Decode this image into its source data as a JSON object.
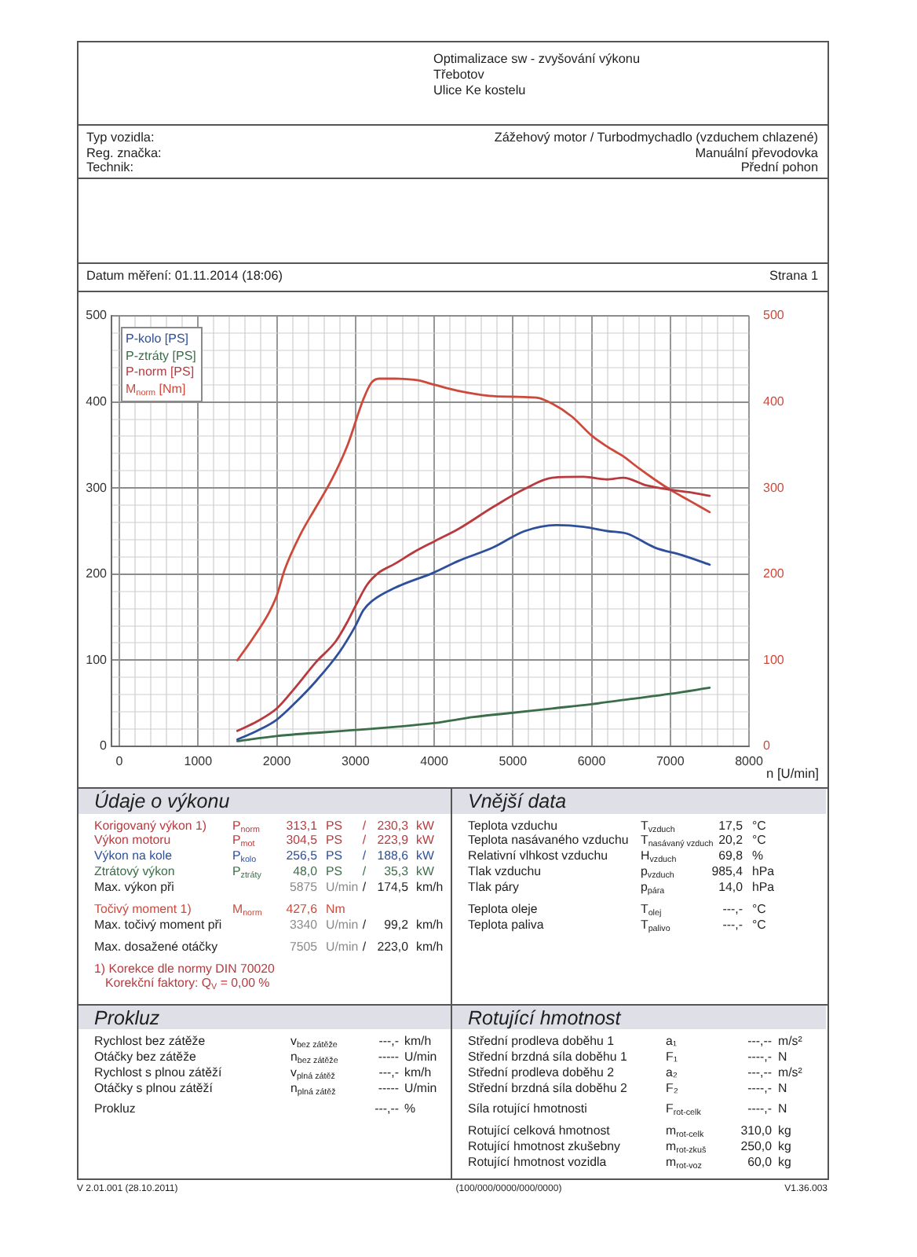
{
  "chart_data": {
    "type": "line",
    "xlabel": "n [U/min]",
    "xlim": [
      -100,
      8000
    ],
    "xticks": [
      0,
      {
        "value": 200,
        "label": null
      },
      {
        "value": 400,
        "label": null
      },
      {
        "value": 600,
        "label": null
      },
      {
        "value": 800,
        "label": null
      },
      1000,
      {
        "value": 1200,
        "label": null
      },
      {
        "value": 1400,
        "label": null
      },
      {
        "value": 1600,
        "label": null
      },
      {
        "value": 1800,
        "label": null
      },
      2000,
      {
        "value": 2200,
        "label": null
      },
      {
        "value": 2400,
        "label": null
      },
      {
        "value": 2600,
        "label": null
      },
      {
        "value": 2800,
        "label": null
      },
      3000,
      {
        "value": 3200,
        "label": null
      },
      {
        "value": 3400,
        "label": null
      },
      {
        "value": 3600,
        "label": null
      },
      {
        "value": 3800,
        "label": null
      },
      4000,
      {
        "value": 4200,
        "label": null
      },
      {
        "value": 4400,
        "label": null
      },
      {
        "value": 4600,
        "label": null
      },
      {
        "value": 4800,
        "label": null
      },
      5000,
      {
        "value": 5200,
        "label": null
      },
      {
        "value": 5400,
        "label": null
      },
      {
        "value": 5600,
        "label": null
      },
      {
        "value": 5800,
        "label": null
      },
      6000,
      {
        "value": 6200,
        "label": null
      },
      {
        "value": 6400,
        "label": null
      },
      {
        "value": 6600,
        "label": null
      },
      {
        "value": 6800,
        "label": null
      },
      7000,
      {
        "value": 7200,
        "label": null
      },
      {
        "value": 7400,
        "label": null
      },
      {
        "value": 7600,
        "label": null
      },
      {
        "value": 7800,
        "label": null
      },
      8000
    ],
    "ylim": [
      0,
      500
    ],
    "yticks": [
      0,
      {
        "value": 20,
        "label": null
      },
      {
        "value": 40,
        "label": null
      },
      {
        "value": 60,
        "label": null
      },
      {
        "value": 80,
        "label": null
      },
      100,
      {
        "value": 120,
        "label": null
      },
      {
        "value": 140,
        "label": null
      },
      {
        "value": 160,
        "label": null
      },
      {
        "value": 180,
        "label": null
      },
      200,
      {
        "value": 220,
        "label": null
      },
      {
        "value": 240,
        "label": null
      },
      {
        "value": 260,
        "label": null
      },
      {
        "value": 280,
        "label": null
      },
      300,
      {
        "value": 320,
        "label": null
      },
      {
        "value": 340,
        "label": null
      },
      {
        "value": 360,
        "label": null
      },
      {
        "value": 380,
        "label": null
      },
      400,
      {
        "value": 420,
        "label": null
      },
      {
        "value": 440,
        "label": null
      },
      {
        "value": 460,
        "label": null
      },
      {
        "value": 480,
        "label": null
      },
      500
    ],
    "y2lim": [
      0,
      500
    ],
    "y2ticks": [
      0,
      100,
      200,
      300,
      400,
      500
    ],
    "grid": true,
    "legend": "top left",
    "series": [
      {
        "name": "P-kolo [PS]",
        "color": "#2e4f9a",
        "x": [
          1500,
          1750,
          2000,
          2250,
          2500,
          2800,
          3000,
          3100,
          3200,
          3500,
          4000,
          4300,
          4750,
          5150,
          5550,
          5900,
          6200,
          6450,
          6800,
          7150,
          7500
        ],
        "values": [
          8,
          18,
          31,
          52,
          76,
          110,
          140,
          158,
          168,
          184,
          202,
          215,
          231,
          250,
          257,
          255,
          250,
          247,
          231,
          222,
          211
        ]
      },
      {
        "name": "P-ztráty [PS]",
        "color": "#3a6e48",
        "x": [
          1500,
          2000,
          3000,
          4000,
          4500,
          5000,
          5500,
          6000,
          6500,
          7000,
          7500
        ],
        "values": [
          6,
          12,
          19,
          27,
          34,
          39,
          44,
          49,
          55,
          61,
          68
        ]
      },
      {
        "name": "P-norm [PS]",
        "color": "#b83a3e",
        "x": [
          1500,
          1750,
          2000,
          2250,
          2500,
          2750,
          2900,
          3000,
          3150,
          3300,
          3500,
          3750,
          4000,
          4300,
          4750,
          5150,
          5500,
          5900,
          6200,
          6400,
          6700,
          7000,
          7250,
          7500
        ],
        "values": [
          18,
          29,
          44,
          70,
          98,
          122,
          145,
          163,
          188,
          202,
          212,
          226,
          238,
          252,
          278,
          299,
          312,
          313,
          310,
          312,
          303,
          298,
          295,
          291
        ]
      },
      {
        "name": "M$_{norm}$ [Nm]",
        "color": "#cc4a3c",
        "axis": "y2",
        "x": [
          1500,
          1700,
          1900,
          2000,
          2100,
          2300,
          2500,
          2700,
          2900,
          3100,
          3200,
          3300,
          3500,
          3800,
          4000,
          4300,
          4700,
          5000,
          5300,
          5500,
          5750,
          6000,
          6200,
          6400,
          6600,
          6800,
          7000,
          7250,
          7500
        ],
        "values": [
          100,
          126,
          155,
          175,
          205,
          246,
          278,
          310,
          350,
          403,
          422,
          427,
          427,
          425,
          420,
          413,
          407,
          406,
          405,
          398,
          383,
          361,
          348,
          337,
          323,
          310,
          298,
          285,
          272
        ]
      }
    ],
    "annotations": [
      "Optimalizace sw - zvyšování výkonu",
      "Třebotov",
      "Ulice Ke kostelu",
      "Typ vozidla:",
      "Reg. značka:",
      "Technik:",
      "Zážehový motor / Turbodmychadlo (vzduchem chlazené)",
      "Manuální převodovka",
      "Přední pohon",
      "Datum měření: 01.11.2014 (18:06)",
      "Strana 1",
      "Údaje o výkonu",
      "Vnější data",
      "Korigovaný výkon 1)",
      "P$_{norm}$",
      "313,1",
      "PS",
      "/",
      "230,3",
      "kW",
      "Výkon motoru",
      "P$_{mot}$",
      "304,5",
      "PS",
      "/",
      "223,9",
      "kW",
      "Výkon na kole",
      "P$_{kolo}$",
      "256,5",
      "PS",
      "/",
      "188,6",
      "kW",
      "Ztrátový výkon",
      "P$_{ztráty}$",
      "48,0",
      "PS",
      "/",
      "35,3",
      "kW",
      "Max. výkon při",
      "5875",
      "U/min",
      "/",
      "174,5",
      "km/h",
      "Točivý moment 1)",
      "M$_{norm}$",
      "427,6",
      "Nm",
      "Max. točivý moment při",
      "3340",
      "U/min",
      "/",
      "99,2",
      "km/h",
      "Max. dosažené otáčky",
      "7505",
      "U/min",
      "/",
      "223,0",
      "km/h",
      "1) Korekce dle normy DIN 70020",
      "Korekční faktory: Q$_{V}$ = 0,00 %",
      "Teplota vzduchu",
      "T$_{vzduch}$",
      "17,5",
      "°C",
      "Teplota nasávaného vzduchu",
      "T$_{nasávaný vzduch}$",
      "20,2",
      "°C",
      "Relativní vlhkost vzduchu",
      "H$_{vzduch}$",
      "69,8",
      "%",
      "Tlak vzduchu",
      "p$_{vzduch}$",
      "985,4",
      "hPa",
      "Tlak páry",
      "p$_{pára}$",
      "14,0",
      "hPa",
      "Teplota oleje",
      "T$_{olej}$",
      "---,-",
      "°C",
      "Teplota paliva",
      "T$_{palivo}$",
      "---,-",
      "°C",
      "Prokluz",
      "Rotující hmotnost",
      "Rychlost bez zátěže",
      "v$_{bez zátěže}$",
      "---,-",
      "km/h",
      "Otáčky bez zátěže",
      "n$_{bez zátěže}$",
      "-----",
      "U/min",
      "Rychlost s plnou zátěží",
      "v$_{plná zátěž}$",
      "---,-",
      "km/h",
      "Otáčky s plnou zátěží",
      "n$_{plná zátěž}$",
      "-----",
      "U/min",
      "Prokluz",
      "---,--",
      "%",
      "Střední prodleva doběhu 1",
      "a₁",
      "---,--",
      "m/s²",
      "Střední brzdná síla doběhu 1",
      "F₁",
      "----,-",
      "N",
      "Střední prodleva doběhu 2",
      "a₂",
      "---,--",
      "m/s²",
      "Střední brzdná síla doběhu 2",
      "F₂",
      "----,-",
      "N",
      "Síla rotující hmotnosti",
      "F$_{rot-celk}$",
      "----,-",
      "N",
      "Rotující celková hmotnost",
      "m$_{rot-celk}$",
      "310,0",
      "kg",
      "Rotující hmotnost zkušebny",
      "m$_{rot-zkuš}$",
      "250,0",
      "kg",
      "Rotující hmotnost vozidla",
      "m$_{rot-voz}$",
      "60,0",
      "kg",
      "V 2.01.001 (28.10.2011)",
      "(100/000/0000/000/0000)",
      "V1.36.003"
    ]
  }
}
